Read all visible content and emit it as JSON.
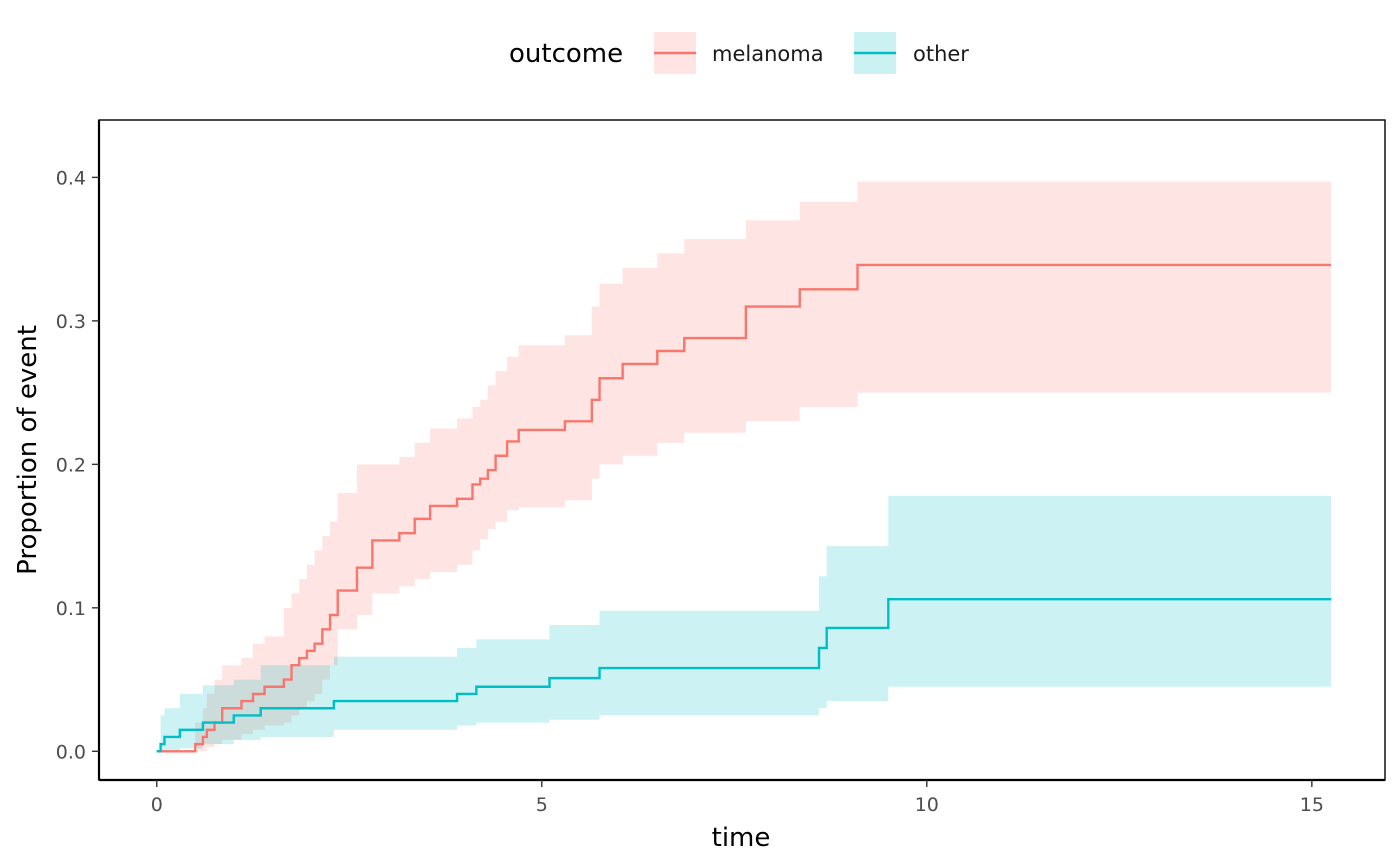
{
  "chart_data": {
    "type": "line",
    "subtype": "step cumulative incidence with confidence bands",
    "xlabel": "time",
    "ylabel": "Proportion of event",
    "xlim": [
      -0.75,
      15.95
    ],
    "ylim": [
      -0.02,
      0.44
    ],
    "x_ticks": [
      0,
      5,
      10,
      15
    ],
    "x_tick_labels": [
      "0",
      "5",
      "10",
      "15"
    ],
    "y_ticks": [
      0.0,
      0.1,
      0.2,
      0.3,
      0.4
    ],
    "y_tick_labels": [
      "0.0",
      "0.1",
      "0.2",
      "0.3",
      "0.4"
    ],
    "grid": false,
    "legend": {
      "title": "outcome",
      "position": "top"
    },
    "series": [
      {
        "name": "melanoma",
        "color": "#F8766D",
        "band_color": "#FFE4E3",
        "x": [
          0,
          0.5,
          0.6,
          0.65,
          0.75,
          0.85,
          1.1,
          1.25,
          1.4,
          1.65,
          1.75,
          1.85,
          1.95,
          2.05,
          2.15,
          2.25,
          2.35,
          2.6,
          2.8,
          3.15,
          3.35,
          3.55,
          3.9,
          4.1,
          4.2,
          4.3,
          4.4,
          4.55,
          4.7,
          5.3,
          5.65,
          5.75,
          6.05,
          6.5,
          6.85,
          7.65,
          8.35,
          9.1,
          15.25
        ],
        "y": [
          0.0,
          0.005,
          0.01,
          0.015,
          0.02,
          0.03,
          0.035,
          0.04,
          0.045,
          0.05,
          0.06,
          0.065,
          0.07,
          0.075,
          0.085,
          0.095,
          0.112,
          0.128,
          0.147,
          0.152,
          0.162,
          0.171,
          0.176,
          0.186,
          0.19,
          0.196,
          0.206,
          0.216,
          0.224,
          0.23,
          0.245,
          0.26,
          0.27,
          0.279,
          0.288,
          0.31,
          0.322,
          0.339,
          0.339
        ],
        "lower": [
          0.0,
          0.0,
          0.0,
          0.003,
          0.005,
          0.008,
          0.012,
          0.015,
          0.018,
          0.02,
          0.025,
          0.03,
          0.035,
          0.04,
          0.05,
          0.06,
          0.085,
          0.095,
          0.11,
          0.115,
          0.12,
          0.125,
          0.13,
          0.14,
          0.148,
          0.155,
          0.16,
          0.168,
          0.17,
          0.175,
          0.19,
          0.2,
          0.206,
          0.215,
          0.222,
          0.23,
          0.24,
          0.25,
          0.25
        ],
        "upper": [
          0.0,
          0.02,
          0.03,
          0.04,
          0.05,
          0.06,
          0.065,
          0.075,
          0.08,
          0.1,
          0.11,
          0.12,
          0.13,
          0.14,
          0.15,
          0.16,
          0.18,
          0.2,
          0.2,
          0.205,
          0.215,
          0.225,
          0.232,
          0.24,
          0.245,
          0.255,
          0.265,
          0.275,
          0.283,
          0.29,
          0.31,
          0.326,
          0.337,
          0.347,
          0.357,
          0.37,
          0.383,
          0.397,
          0.42
        ]
      },
      {
        "name": "other",
        "color": "#00BFC4",
        "band_color": "#CCF1F2",
        "x": [
          0,
          0.05,
          0.1,
          0.3,
          0.6,
          1.0,
          1.35,
          2.3,
          3.9,
          4.15,
          5.1,
          5.75,
          8.6,
          8.7,
          9.5,
          15.25
        ],
        "y": [
          0.0,
          0.005,
          0.01,
          0.015,
          0.02,
          0.025,
          0.03,
          0.035,
          0.04,
          0.045,
          0.051,
          0.058,
          0.072,
          0.086,
          0.106,
          0.106
        ],
        "lower": [
          0.0,
          0.0,
          0.0,
          0.002,
          0.005,
          0.008,
          0.01,
          0.015,
          0.018,
          0.02,
          0.022,
          0.025,
          0.03,
          0.035,
          0.045,
          0.054
        ],
        "upper": [
          0.0,
          0.025,
          0.03,
          0.04,
          0.046,
          0.05,
          0.06,
          0.066,
          0.072,
          0.078,
          0.088,
          0.098,
          0.122,
          0.143,
          0.178,
          0.178
        ]
      }
    ]
  }
}
